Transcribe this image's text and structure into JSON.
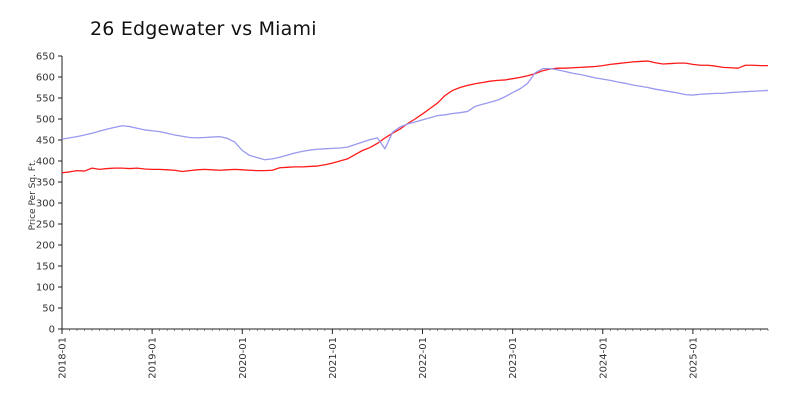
{
  "chart_data": {
    "type": "line",
    "title": "26 Edgewater vs Miami",
    "xlabel": "",
    "ylabel": "Price Per Sq. Ft.",
    "ylim": [
      0,
      650
    ],
    "yticks": [
      0,
      50,
      100,
      150,
      200,
      250,
      300,
      350,
      400,
      450,
      500,
      550,
      600,
      650
    ],
    "xticks": [
      "2018-01",
      "2019-01",
      "2020-01",
      "2021-01",
      "2022-01",
      "2023-01",
      "2024-01",
      "2025-01"
    ],
    "grid": false,
    "legend": "none",
    "series": [
      {
        "color": "#ff1a1a",
        "points": [
          [
            "2018-01",
            372
          ],
          [
            "2018-02",
            374
          ],
          [
            "2018-03",
            377
          ],
          [
            "2018-04",
            376
          ],
          [
            "2018-05",
            383
          ],
          [
            "2018-06",
            380
          ],
          [
            "2018-07",
            382
          ],
          [
            "2018-08",
            383
          ],
          [
            "2018-09",
            383
          ],
          [
            "2018-10",
            382
          ],
          [
            "2018-11",
            383
          ],
          [
            "2018-12",
            381
          ],
          [
            "2019-01",
            380
          ],
          [
            "2019-02",
            380
          ],
          [
            "2019-03",
            379
          ],
          [
            "2019-04",
            378
          ],
          [
            "2019-05",
            375
          ],
          [
            "2019-06",
            377
          ],
          [
            "2019-07",
            379
          ],
          [
            "2019-08",
            380
          ],
          [
            "2019-09",
            379
          ],
          [
            "2019-10",
            378
          ],
          [
            "2019-11",
            379
          ],
          [
            "2019-12",
            380
          ],
          [
            "2020-01",
            379
          ],
          [
            "2020-02",
            378
          ],
          [
            "2020-03",
            377
          ],
          [
            "2020-04",
            377
          ],
          [
            "2020-05",
            378
          ],
          [
            "2020-06",
            384
          ],
          [
            "2020-07",
            385
          ],
          [
            "2020-08",
            386
          ],
          [
            "2020-09",
            386
          ],
          [
            "2020-10",
            387
          ],
          [
            "2020-11",
            388
          ],
          [
            "2020-12",
            391
          ],
          [
            "2021-01",
            395
          ],
          [
            "2021-02",
            400
          ],
          [
            "2021-03",
            405
          ],
          [
            "2021-04",
            415
          ],
          [
            "2021-05",
            425
          ],
          [
            "2021-06",
            432
          ],
          [
            "2021-07",
            442
          ],
          [
            "2021-08",
            455
          ],
          [
            "2021-09",
            466
          ],
          [
            "2021-10",
            476
          ],
          [
            "2021-11",
            489
          ],
          [
            "2021-12",
            500
          ],
          [
            "2022-01",
            512
          ],
          [
            "2022-02",
            525
          ],
          [
            "2022-03",
            538
          ],
          [
            "2022-04",
            556
          ],
          [
            "2022-05",
            568
          ],
          [
            "2022-06",
            575
          ],
          [
            "2022-07",
            580
          ],
          [
            "2022-08",
            584
          ],
          [
            "2022-09",
            587
          ],
          [
            "2022-10",
            590
          ],
          [
            "2022-11",
            592
          ],
          [
            "2022-12",
            593
          ],
          [
            "2023-01",
            596
          ],
          [
            "2023-02",
            599
          ],
          [
            "2023-03",
            603
          ],
          [
            "2023-04",
            608
          ],
          [
            "2023-05",
            615
          ],
          [
            "2023-06",
            619
          ],
          [
            "2023-07",
            621
          ],
          [
            "2023-08",
            621
          ],
          [
            "2023-09",
            622
          ],
          [
            "2023-10",
            623
          ],
          [
            "2023-11",
            624
          ],
          [
            "2023-12",
            625
          ],
          [
            "2024-01",
            627
          ],
          [
            "2024-02",
            630
          ],
          [
            "2024-03",
            632
          ],
          [
            "2024-04",
            634
          ],
          [
            "2024-05",
            636
          ],
          [
            "2024-06",
            637
          ],
          [
            "2024-07",
            638
          ],
          [
            "2024-08",
            634
          ],
          [
            "2024-09",
            631
          ],
          [
            "2024-10",
            632
          ],
          [
            "2024-11",
            633
          ],
          [
            "2024-12",
            633
          ],
          [
            "2025-01",
            630
          ],
          [
            "2025-02",
            628
          ],
          [
            "2025-03",
            628
          ],
          [
            "2025-04",
            626
          ],
          [
            "2025-05",
            623
          ],
          [
            "2025-06",
            622
          ],
          [
            "2025-07",
            621
          ],
          [
            "2025-08",
            628
          ],
          [
            "2025-09",
            628
          ],
          [
            "2025-10",
            627
          ],
          [
            "2025-11",
            627
          ]
        ]
      },
      {
        "color": "#9999f0",
        "points": [
          [
            "2018-01",
            452
          ],
          [
            "2018-02",
            455
          ],
          [
            "2018-03",
            458
          ],
          [
            "2018-04",
            462
          ],
          [
            "2018-05",
            466
          ],
          [
            "2018-06",
            471
          ],
          [
            "2018-07",
            476
          ],
          [
            "2018-08",
            480
          ],
          [
            "2018-09",
            484
          ],
          [
            "2018-10",
            482
          ],
          [
            "2018-11",
            478
          ],
          [
            "2018-12",
            474
          ],
          [
            "2019-01",
            472
          ],
          [
            "2019-02",
            470
          ],
          [
            "2019-03",
            466
          ],
          [
            "2019-04",
            462
          ],
          [
            "2019-05",
            459
          ],
          [
            "2019-06",
            456
          ],
          [
            "2019-07",
            455
          ],
          [
            "2019-08",
            456
          ],
          [
            "2019-09",
            457
          ],
          [
            "2019-10",
            458
          ],
          [
            "2019-11",
            454
          ],
          [
            "2019-12",
            445
          ],
          [
            "2020-01",
            425
          ],
          [
            "2020-02",
            413
          ],
          [
            "2020-03",
            408
          ],
          [
            "2020-04",
            403
          ],
          [
            "2020-05",
            405
          ],
          [
            "2020-06",
            409
          ],
          [
            "2020-07",
            414
          ],
          [
            "2020-08",
            419
          ],
          [
            "2020-09",
            423
          ],
          [
            "2020-10",
            426
          ],
          [
            "2020-11",
            428
          ],
          [
            "2020-12",
            429
          ],
          [
            "2021-01",
            430
          ],
          [
            "2021-02",
            431
          ],
          [
            "2021-03",
            433
          ],
          [
            "2021-04",
            439
          ],
          [
            "2021-05",
            445
          ],
          [
            "2021-06",
            451
          ],
          [
            "2021-07",
            455
          ],
          [
            "2021-08",
            429
          ],
          [
            "2021-09",
            468
          ],
          [
            "2021-10",
            481
          ],
          [
            "2021-11",
            488
          ],
          [
            "2021-12",
            493
          ],
          [
            "2022-01",
            498
          ],
          [
            "2022-02",
            503
          ],
          [
            "2022-03",
            508
          ],
          [
            "2022-04",
            510
          ],
          [
            "2022-05",
            513
          ],
          [
            "2022-06",
            515
          ],
          [
            "2022-07",
            518
          ],
          [
            "2022-08",
            530
          ],
          [
            "2022-09",
            535
          ],
          [
            "2022-10",
            540
          ],
          [
            "2022-11",
            545
          ],
          [
            "2022-12",
            553
          ],
          [
            "2023-01",
            563
          ],
          [
            "2023-02",
            572
          ],
          [
            "2023-03",
            585
          ],
          [
            "2023-04",
            610
          ],
          [
            "2023-05",
            620
          ],
          [
            "2023-06",
            620
          ],
          [
            "2023-07",
            617
          ],
          [
            "2023-08",
            613
          ],
          [
            "2023-09",
            609
          ],
          [
            "2023-10",
            606
          ],
          [
            "2023-11",
            602
          ],
          [
            "2023-12",
            598
          ],
          [
            "2024-01",
            595
          ],
          [
            "2024-02",
            592
          ],
          [
            "2024-03",
            588
          ],
          [
            "2024-04",
            585
          ],
          [
            "2024-05",
            581
          ],
          [
            "2024-06",
            578
          ],
          [
            "2024-07",
            575
          ],
          [
            "2024-08",
            571
          ],
          [
            "2024-09",
            568
          ],
          [
            "2024-10",
            565
          ],
          [
            "2024-11",
            562
          ],
          [
            "2024-12",
            558
          ],
          [
            "2025-01",
            557
          ],
          [
            "2025-02",
            559
          ],
          [
            "2025-03",
            560
          ],
          [
            "2025-04",
            561
          ],
          [
            "2025-05",
            561
          ],
          [
            "2025-06",
            563
          ],
          [
            "2025-07",
            564
          ],
          [
            "2025-08",
            565
          ],
          [
            "2025-09",
            566
          ],
          [
            "2025-10",
            567
          ],
          [
            "2025-11",
            568
          ]
        ]
      }
    ]
  }
}
